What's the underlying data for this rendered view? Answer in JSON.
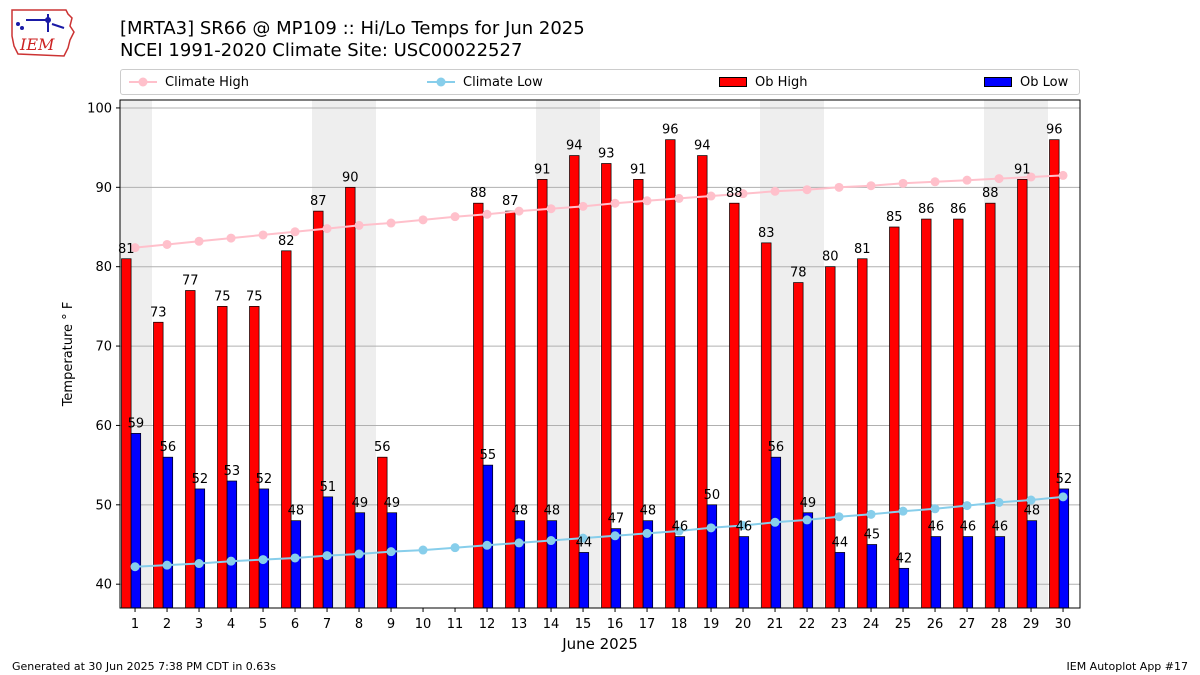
{
  "header": {
    "title_line1": "[MRTA3] SR66 @ MP109 :: Hi/Lo Temps for Jun 2025",
    "title_line2": "NCEI 1991-2020 Climate Site: USC00022527",
    "logo_text": "IEM"
  },
  "footer": {
    "generated": "Generated at 30 Jun 2025 7:38 PM CDT in 0.63s",
    "app": "IEM Autoplot App #17"
  },
  "legend": {
    "climate_high": "Climate High",
    "climate_low": "Climate Low",
    "ob_high": "Ob High",
    "ob_low": "Ob Low"
  },
  "colors": {
    "climate_high": "#ffc0cb",
    "climate_low": "#87ceeb",
    "ob_high": "#ff0000",
    "ob_low": "#0000ff",
    "weekend_shade": "#eeeeee",
    "grid": "#b0b0b0"
  },
  "chart_data": {
    "type": "bar",
    "xlabel": "June 2025",
    "ylabel": "Temperature ° F",
    "ylim": [
      37,
      101
    ],
    "yticks": [
      40,
      50,
      60,
      70,
      80,
      90,
      100
    ],
    "grid": "horizontal",
    "legend_position": "top",
    "days": [
      1,
      2,
      3,
      4,
      5,
      6,
      7,
      8,
      9,
      10,
      11,
      12,
      13,
      14,
      15,
      16,
      17,
      18,
      19,
      20,
      21,
      22,
      23,
      24,
      25,
      26,
      27,
      28,
      29,
      30
    ],
    "weekend_days": [
      1,
      7,
      8,
      14,
      15,
      21,
      22,
      28,
      29
    ],
    "series": [
      {
        "name": "Ob High",
        "kind": "bar",
        "values": [
          81,
          73,
          77,
          75,
          75,
          82,
          87,
          90,
          56,
          null,
          null,
          88,
          87,
          91,
          94,
          93,
          91,
          96,
          94,
          88,
          83,
          78,
          80,
          81,
          85,
          86,
          86,
          88,
          91,
          96
        ]
      },
      {
        "name": "Ob Low",
        "kind": "bar",
        "values": [
          59,
          56,
          52,
          53,
          52,
          48,
          51,
          49,
          49,
          null,
          null,
          55,
          48,
          48,
          44,
          47,
          48,
          46,
          50,
          46,
          56,
          49,
          44,
          45,
          42,
          46,
          46,
          46,
          48,
          52
        ]
      },
      {
        "name": "Climate High",
        "kind": "line",
        "values": [
          82.4,
          82.8,
          83.2,
          83.6,
          84.0,
          84.4,
          84.8,
          85.2,
          85.5,
          85.9,
          86.3,
          86.6,
          87.0,
          87.3,
          87.6,
          88.0,
          88.3,
          88.6,
          88.9,
          89.2,
          89.5,
          89.7,
          90.0,
          90.2,
          90.5,
          90.7,
          90.9,
          91.1,
          91.3,
          91.5
        ]
      },
      {
        "name": "Climate Low",
        "kind": "line",
        "values": [
          42.2,
          42.4,
          42.6,
          42.9,
          43.1,
          43.3,
          43.6,
          43.8,
          44.1,
          44.3,
          44.6,
          44.9,
          45.2,
          45.5,
          45.8,
          46.1,
          46.4,
          46.7,
          47.1,
          47.4,
          47.8,
          48.1,
          48.5,
          48.8,
          49.2,
          49.5,
          49.9,
          50.3,
          50.6,
          51.0
        ]
      }
    ]
  }
}
